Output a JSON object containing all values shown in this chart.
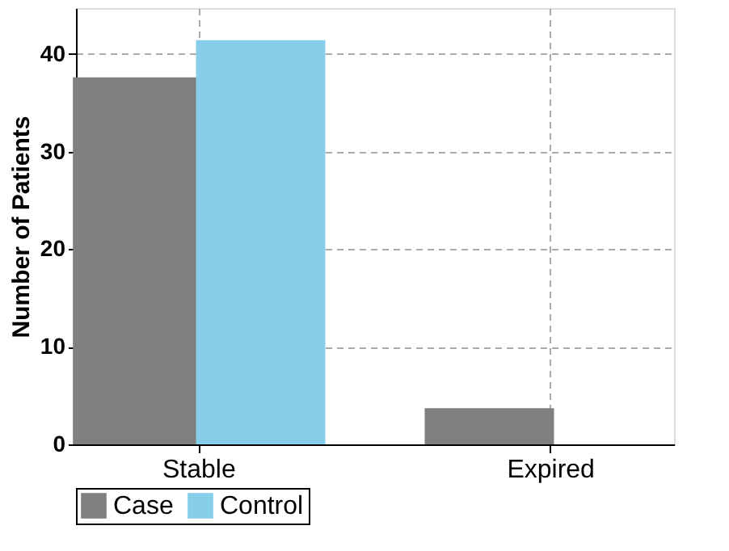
{
  "chart_data": {
    "type": "bar",
    "ylabel": "Number of Patients",
    "categories": [
      "Stable",
      "Expired"
    ],
    "series": [
      {
        "name": "Case",
        "color": "#808080",
        "values": [
          37.6,
          3.7
        ]
      },
      {
        "name": "Control",
        "color": "#87ceeb",
        "values": [
          41.4,
          0
        ]
      }
    ],
    "ylim": [
      0,
      44.7
    ],
    "yticks": [
      0,
      10,
      20,
      30,
      40
    ],
    "grid": true,
    "legend": "bottom"
  }
}
